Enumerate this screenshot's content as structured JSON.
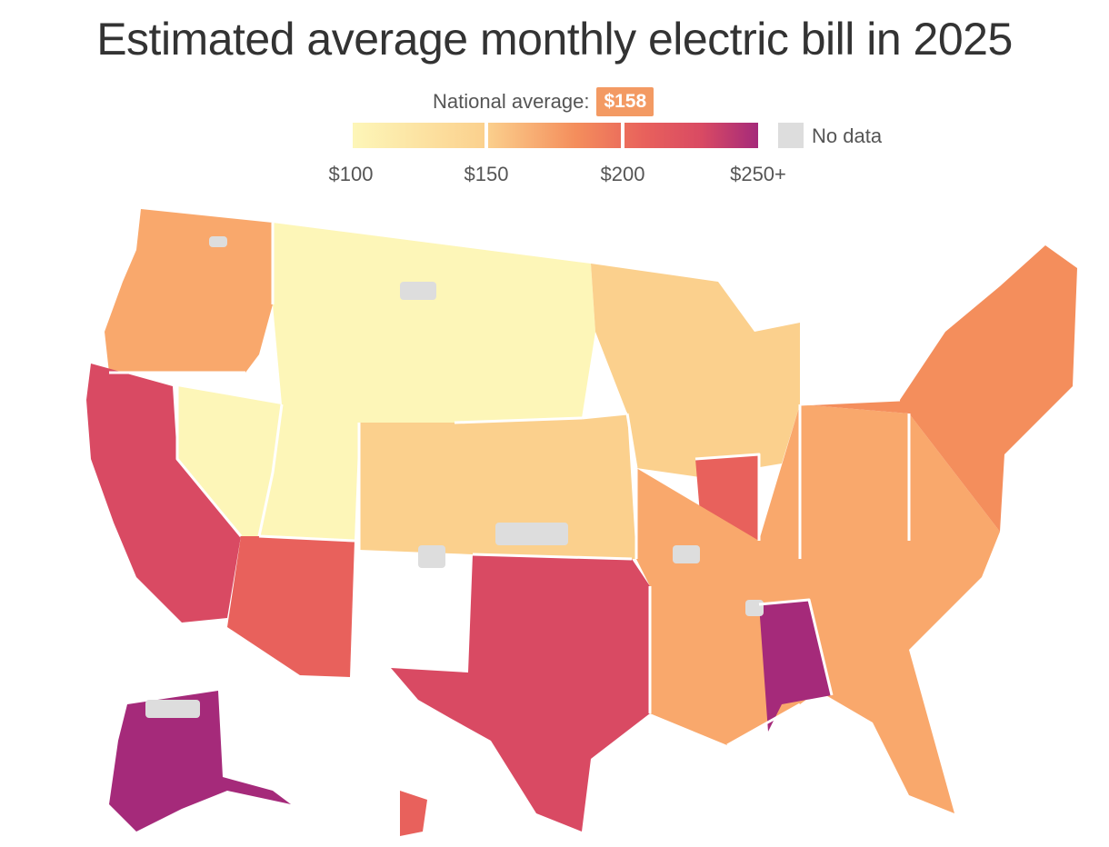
{
  "title": "Estimated average monthly electric bill in 2025",
  "national_average": {
    "label": "National average:",
    "value": "$158"
  },
  "legend": {
    "ticks": [
      "$100",
      "$150",
      "$200",
      "$250+"
    ],
    "no_data_label": "No data"
  },
  "scale_colors": [
    "#fdf6b8",
    "#fbd08d",
    "#f9a86c",
    "#f48e5c",
    "#e8615c",
    "#d94a63",
    "#a52a7a"
  ],
  "no_data_color": "#dddddd",
  "map_regions": [
    {
      "name": "Pacific Northwest",
      "level": 2
    },
    {
      "name": "California",
      "level": 5
    },
    {
      "name": "Nevada",
      "level": 0
    },
    {
      "name": "Arizona",
      "level": 4
    },
    {
      "name": "Northern Rockies and Plains",
      "level": 0
    },
    {
      "name": "Central Plains",
      "level": 1
    },
    {
      "name": "Texas",
      "level": 5
    },
    {
      "name": "Upper Midwest",
      "level": 1
    },
    {
      "name": "Illinois",
      "level": 4
    },
    {
      "name": "Southeast",
      "level": 2
    },
    {
      "name": "Alabama",
      "level": 6
    },
    {
      "name": "Northeast",
      "level": 3
    },
    {
      "name": "Alaska",
      "level": 6
    },
    {
      "name": "Hawaii",
      "level": 4
    }
  ]
}
